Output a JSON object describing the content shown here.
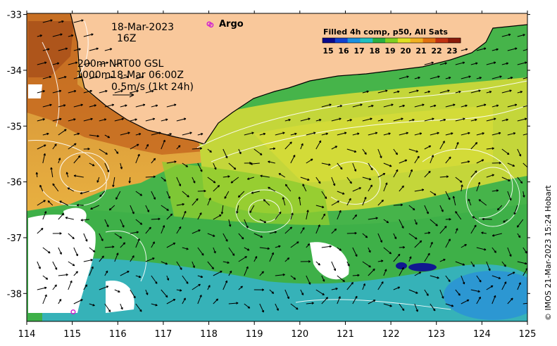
{
  "map": {
    "date": "18-Mar-2023",
    "time": "16Z",
    "depth_line1": "200m  NRT00 GSL",
    "depth_line2": "1000m18-Mar 06:00Z",
    "scale_text": "0.5m/s (1kt 24h)",
    "argo_label": "Argo",
    "credit": "© IMOS 21-Mar-2023 15:24 Hobart"
  },
  "axes": {
    "x_ticks": [
      "114",
      "115",
      "116",
      "117",
      "118",
      "119",
      "120",
      "121",
      "122",
      "123",
      "124",
      "125"
    ],
    "y_ticks": [
      "-33",
      "-34",
      "-35",
      "-36",
      "-37",
      "-38"
    ]
  },
  "legend": {
    "title": "Filled 4h comp, p50, All Sats",
    "ticks": [
      "15",
      "16",
      "17",
      "18",
      "19",
      "20",
      "21",
      "22",
      "23"
    ],
    "colors": [
      "#08088c",
      "#1040d0",
      "#1890e0",
      "#20c0c0",
      "#28b040",
      "#80d020",
      "#e0e020",
      "#f0b020",
      "#e07010",
      "#c03010",
      "#8a1a0a"
    ]
  },
  "colors": {
    "land": "#f9c89b",
    "argo_marker": "#d020d0",
    "warm": "#e09030",
    "hot": "#c05818",
    "mid": "#c8d83a",
    "cool": "#40b848",
    "cold": "#30b0c0"
  },
  "argo_floats": [
    {
      "lon": 118.05,
      "lat": -33.19
    },
    {
      "lon": 115.02,
      "lat": -38.33
    }
  ]
}
